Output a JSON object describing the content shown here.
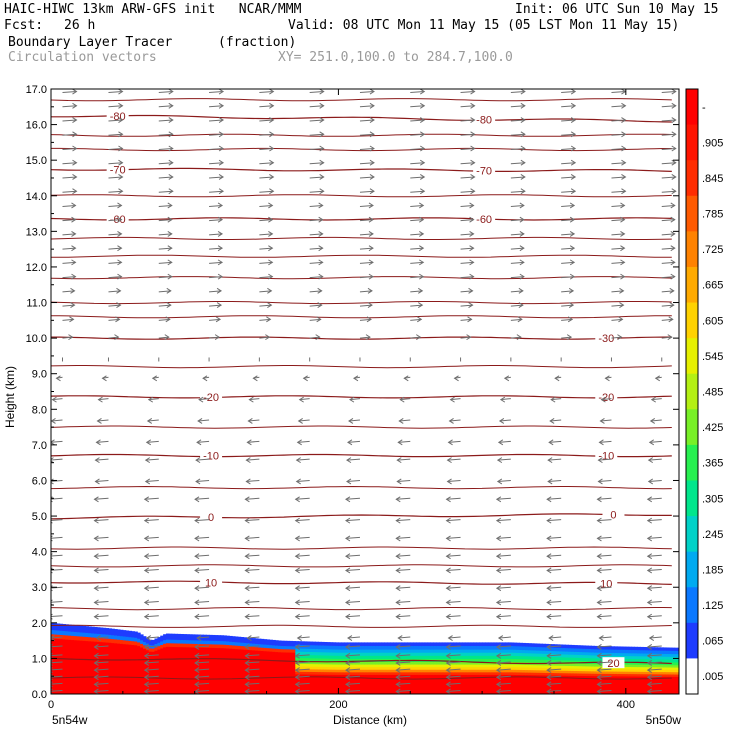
{
  "header": {
    "model_line": "HAIC-HIWC 13km ARW-GFS init   NCAR/MMM",
    "init_line": "Init: 06 UTC Sun 10 May 15",
    "fcst_label": "Fcst:",
    "fcst_value": "26 h",
    "valid_line": "Valid: 08 UTC Mon 11 May 15 (05 LST Mon 11 May 15)",
    "field_name": "Boundary Layer Tracer",
    "field_unit": "(fraction)",
    "vector_name": "Circulation vectors",
    "xy_range": "XY= 251.0,100.0 to 284.7,100.0"
  },
  "colors": {
    "contour_line": "#8b1a1a",
    "vector_arrow": "#6e6e6e",
    "colorbar": [
      "#ffffff",
      "#1e3cff",
      "#0a78ff",
      "#00aaf0",
      "#00d2c8",
      "#00e68c",
      "#28f050",
      "#78f028",
      "#b4f014",
      "#e6f000",
      "#ffd200",
      "#ffaa00",
      "#ff8200",
      "#ff5a00",
      "#ff2d00",
      "#ff1400",
      "#ff0000"
    ]
  },
  "chart_data": {
    "type": "heatmap",
    "title": "Boundary Layer Tracer",
    "units": "(fraction)",
    "xlabel": "Distance (km)",
    "ylabel": "Height (km)",
    "xlim": [
      0,
      437
    ],
    "ylim": [
      0,
      17
    ],
    "x_ticks": [
      {
        "value": 0,
        "label": "0"
      },
      {
        "value": 200,
        "label": "200"
      },
      {
        "value": 400,
        "label": "400"
      }
    ],
    "y_ticks": [
      "0.0",
      "1.0",
      "2.0",
      "3.0",
      "4.0",
      "5.0",
      "6.0",
      "7.0",
      "8.0",
      "9.0",
      "10.0",
      "11.0",
      "12.0",
      "13.0",
      "14.0",
      "15.0",
      "16.0",
      "17.0"
    ],
    "x_endpoints": {
      "left": "5n54w",
      "right": "5n50w"
    },
    "colorbar_levels": [
      "-",
      ".905",
      ".845",
      ".785",
      ".725",
      ".665",
      ".605",
      ".545",
      ".485",
      ".425",
      ".365",
      ".305",
      ".245",
      ".185",
      ".125",
      ".065",
      ".005"
    ],
    "tracer_top_km": [
      {
        "x": 0,
        "h": 2.0
      },
      {
        "x": 40,
        "h": 1.85
      },
      {
        "x": 60,
        "h": 1.75
      },
      {
        "x": 70,
        "h": 1.5
      },
      {
        "x": 80,
        "h": 1.7
      },
      {
        "x": 120,
        "h": 1.65
      },
      {
        "x": 160,
        "h": 1.5
      },
      {
        "x": 200,
        "h": 1.45
      },
      {
        "x": 260,
        "h": 1.45
      },
      {
        "x": 320,
        "h": 1.45
      },
      {
        "x": 380,
        "h": 1.35
      },
      {
        "x": 437,
        "h": 1.3
      }
    ],
    "temperature_contours": [
      {
        "label": "20",
        "value": 20,
        "label_x": 390,
        "h_start": 1.0,
        "h_end": 0.85
      },
      {
        "label": "10",
        "value": 10,
        "label_x": [
          110,
          385
        ],
        "h_start": 3.15,
        "h_end": 3.1
      },
      {
        "label": "0",
        "value": 0,
        "label_x": [
          110,
          390
        ],
        "h_start": 4.95,
        "h_end": 5.05
      },
      {
        "label": "-10",
        "value": -10,
        "label_x": [
          110,
          385
        ],
        "h_start": 6.7,
        "h_end": 6.7
      },
      {
        "label": "-20",
        "value": -20,
        "label_x": [
          110,
          385
        ],
        "h_start": 8.35,
        "h_end": 8.35
      },
      {
        "label": "-30",
        "value": -30,
        "label_x": 385,
        "h_start": 10.0,
        "h_end": 10.0
      },
      {
        "label": "-60",
        "value": -60,
        "label_x": [
          45,
          300
        ],
        "h_start": 13.35,
        "h_end": 13.35
      },
      {
        "label": "-70",
        "value": -70,
        "label_x": [
          45,
          300
        ],
        "h_start": 14.75,
        "h_end": 14.7
      },
      {
        "label": "-80",
        "value": -80,
        "label_x": [
          45,
          300
        ],
        "h_start": 16.25,
        "h_end": 16.1
      }
    ],
    "plain_contours_km": [
      0.45,
      1.9,
      2.4,
      3.6,
      4.1,
      5.8,
      7.5,
      9.2,
      10.6,
      11.0,
      11.7,
      12.3,
      12.8,
      14.0,
      15.3,
      15.7,
      16.7
    ],
    "circulation_vectors": {
      "x_positions_km": [
        8,
        40,
        75,
        110,
        145,
        180,
        215,
        250,
        285,
        320,
        355,
        390,
        425
      ],
      "levels": [
        {
          "h": 0.1,
          "dir": -1,
          "len": 14
        },
        {
          "h": 0.3,
          "dir": -1,
          "len": 14
        },
        {
          "h": 0.5,
          "dir": -1,
          "len": 14
        },
        {
          "h": 0.7,
          "dir": -1,
          "len": 14
        },
        {
          "h": 0.9,
          "dir": -1,
          "len": 14
        },
        {
          "h": 1.1,
          "dir": -1,
          "len": 14
        },
        {
          "h": 1.35,
          "dir": -1,
          "len": 14
        },
        {
          "h": 1.6,
          "dir": -1,
          "len": 12
        },
        {
          "h": 2.2,
          "dir": -1,
          "len": 14
        },
        {
          "h": 2.6,
          "dir": -1,
          "len": 14
        },
        {
          "h": 3.0,
          "dir": -1,
          "len": 14
        },
        {
          "h": 3.5,
          "dir": -1,
          "len": 14
        },
        {
          "h": 3.9,
          "dir": -1,
          "len": 14
        },
        {
          "h": 4.4,
          "dir": -1,
          "len": 14
        },
        {
          "h": 4.9,
          "dir": -1,
          "len": 14
        },
        {
          "h": 5.5,
          "dir": -1,
          "len": 14
        },
        {
          "h": 6.0,
          "dir": -1,
          "len": 13
        },
        {
          "h": 6.6,
          "dir": -1,
          "len": 13
        },
        {
          "h": 7.1,
          "dir": -1,
          "len": 12
        },
        {
          "h": 7.7,
          "dir": -1,
          "len": 11
        },
        {
          "h": 8.3,
          "dir": -1,
          "len": 10
        },
        {
          "h": 8.9,
          "dir": -1,
          "len": 6
        },
        {
          "h": 9.4,
          "dir": 0,
          "len": 3
        },
        {
          "h": 10.0,
          "dir": 1,
          "len": 10
        },
        {
          "h": 10.5,
          "dir": 1,
          "len": 11
        },
        {
          "h": 10.9,
          "dir": 1,
          "len": 12
        },
        {
          "h": 11.3,
          "dir": 1,
          "len": 12
        },
        {
          "h": 11.7,
          "dir": 1,
          "len": 13
        },
        {
          "h": 12.1,
          "dir": 1,
          "len": 13
        },
        {
          "h": 12.5,
          "dir": 1,
          "len": 13
        },
        {
          "h": 12.9,
          "dir": 1,
          "len": 13
        },
        {
          "h": 13.3,
          "dir": 1,
          "len": 13
        },
        {
          "h": 13.7,
          "dir": 1,
          "len": 13
        },
        {
          "h": 14.1,
          "dir": 1,
          "len": 14
        },
        {
          "h": 14.5,
          "dir": 1,
          "len": 14
        },
        {
          "h": 14.9,
          "dir": 1,
          "len": 14
        },
        {
          "h": 15.3,
          "dir": 1,
          "len": 14
        },
        {
          "h": 15.7,
          "dir": 1,
          "len": 14
        },
        {
          "h": 16.1,
          "dir": 1,
          "len": 14
        },
        {
          "h": 16.5,
          "dir": 1,
          "len": 14
        },
        {
          "h": 16.9,
          "dir": 1,
          "len": 14
        }
      ]
    }
  }
}
